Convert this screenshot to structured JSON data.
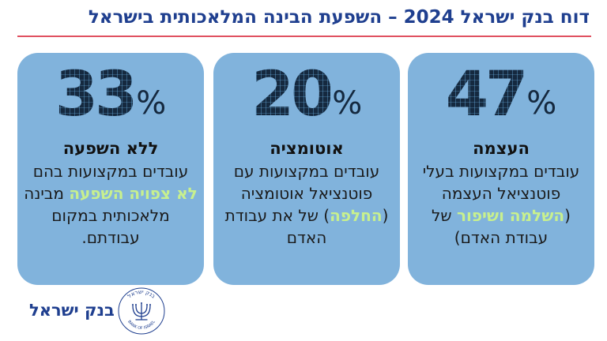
{
  "header": {
    "title": "דוח בנק ישראל 2024 – השפעת הבינה המלאכותית בישראל"
  },
  "cards": [
    {
      "percent": "47",
      "percent_sign": "%",
      "headline": "העצמה",
      "desc_pre": "עובדים במקצועות בעלי פוטנציאל העצמה (",
      "desc_hl": "השלמה ושיפור",
      "desc_post": " של עבודת האדם)"
    },
    {
      "percent": "20",
      "percent_sign": "%",
      "headline": "אוטומציה",
      "desc_pre": "עובדים במקצועות עם פוטנציאל אוטומציה (",
      "desc_hl": "החלפה",
      "desc_post": ") של את עבודת האדם"
    },
    {
      "percent": "33",
      "percent_sign": "%",
      "headline": "ללא השפעה",
      "desc_pre": "עובדים במקצועות בהם ",
      "desc_hl": "לא צפויה השפעה",
      "desc_post": " מבינה מלאכותית במקום עבודתם."
    }
  ],
  "footer": {
    "logo_text": "בנק ישראל",
    "seal_text_top": "בנק ישראל",
    "seal_text_bottom": "BANK OF ISRAEL"
  },
  "colors": {
    "title": "#1f3f8f",
    "rule": "#e05060",
    "card_bg": "#81b3dc",
    "highlight": "#c8f08e"
  }
}
